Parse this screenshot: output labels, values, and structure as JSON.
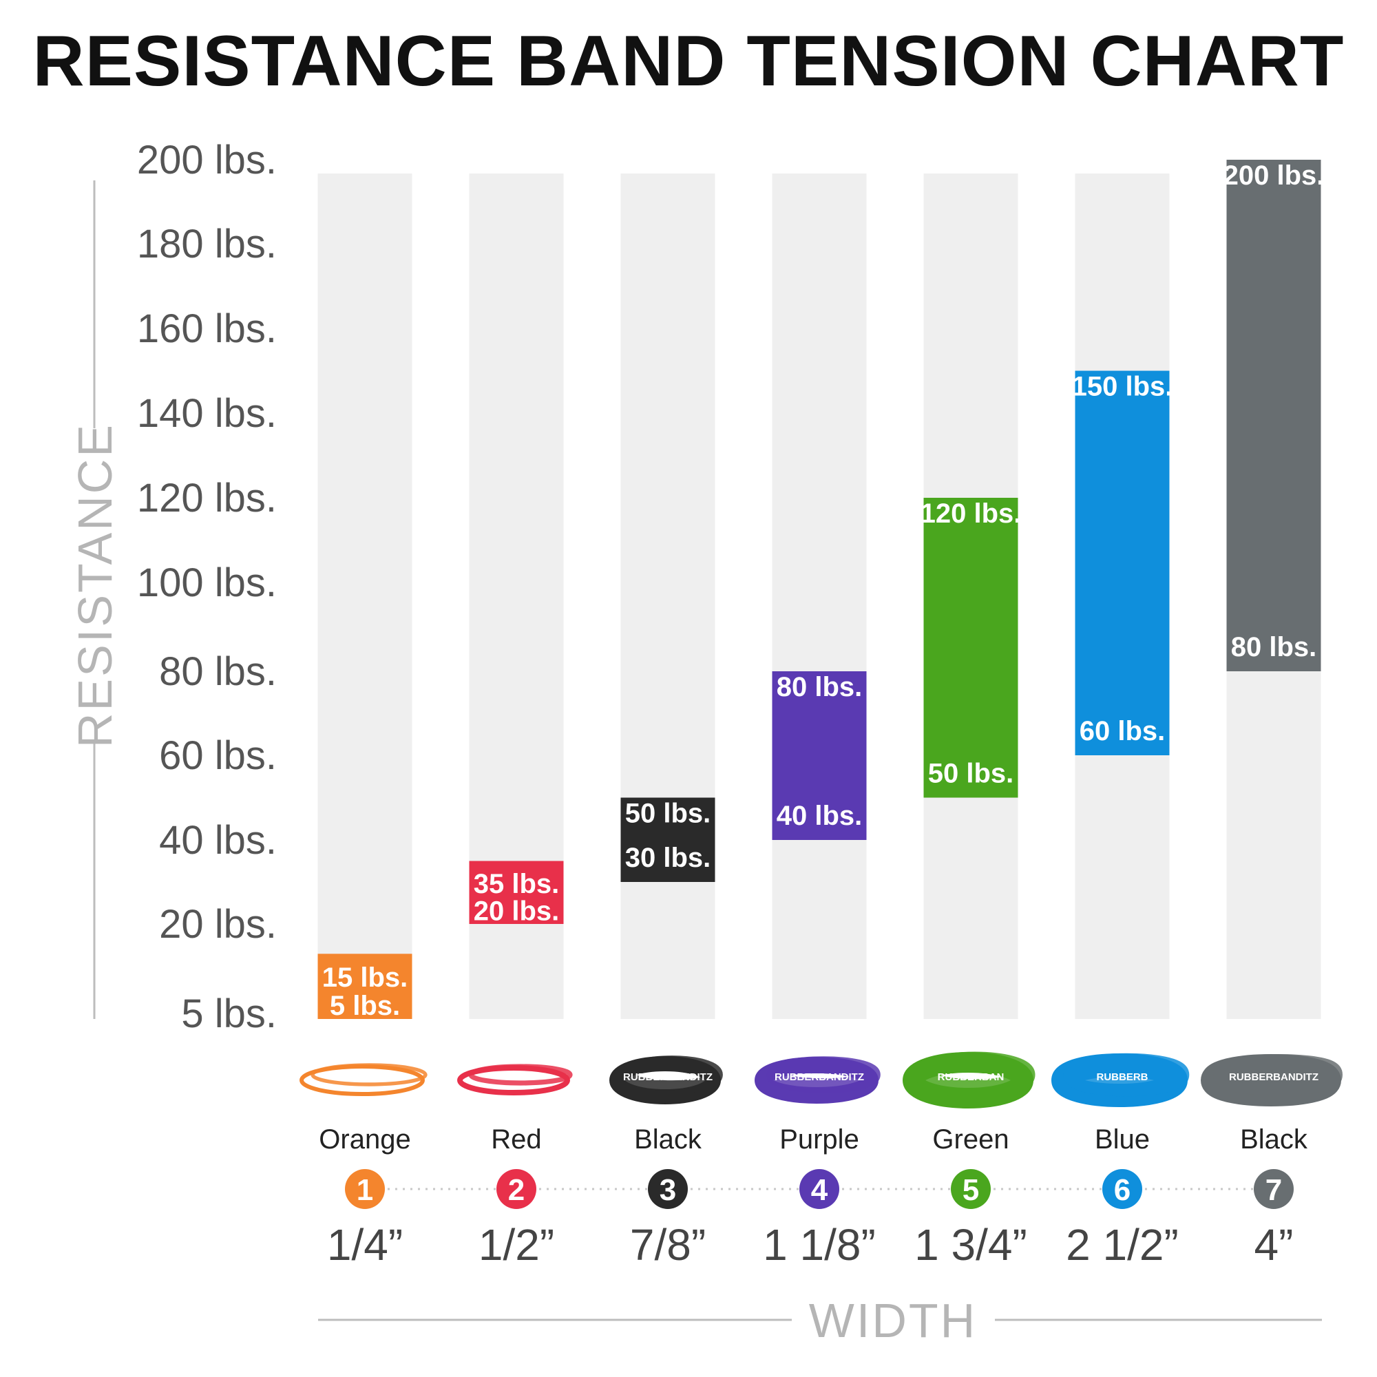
{
  "chart_data": {
    "type": "bar",
    "subtype": "floating-range",
    "title": "RESISTANCE BAND TENSION CHART",
    "ylabel": "RESISTANCE",
    "xlabel": "WIDTH",
    "yticks": [
      "5 lbs.",
      "20 lbs.",
      "40 lbs.",
      "60 lbs.",
      "80 lbs.",
      "100 lbs.",
      "120 lbs.",
      "140 lbs.",
      "160 lbs.",
      "180 lbs.",
      "200 lbs."
    ],
    "ylim": [
      0,
      200
    ],
    "series": [
      {
        "index": "1",
        "name": "Orange",
        "width": "1/4”",
        "low": 5,
        "high": 15,
        "low_label": "5 lbs.",
        "high_label": "15 lbs.",
        "color": "#f4852d",
        "icon": "orange-band-icon",
        "brand": ""
      },
      {
        "index": "2",
        "name": "Red",
        "width": "1/2”",
        "low": 20,
        "high": 35,
        "low_label": "20 lbs.",
        "high_label": "35 lbs.",
        "color": "#e8304a",
        "icon": "red-band-icon",
        "brand": ""
      },
      {
        "index": "3",
        "name": "Black",
        "width": "7/8”",
        "low": 30,
        "high": 50,
        "low_label": "30 lbs.",
        "high_label": "50 lbs.",
        "color": "#2a2a2a",
        "icon": "black-band-icon",
        "brand": "RUBBERBANDITZ"
      },
      {
        "index": "4",
        "name": "Purple",
        "width": "1 1/8”",
        "low": 40,
        "high": 80,
        "low_label": "40 lbs.",
        "high_label": "80 lbs.",
        "color": "#5a3ab2",
        "icon": "purple-band-icon",
        "brand": "RUBBERBANDITZ"
      },
      {
        "index": "5",
        "name": "Green",
        "width": "1 3/4”",
        "low": 50,
        "high": 120,
        "low_label": "50 lbs.",
        "high_label": "120 lbs.",
        "color": "#4aa61e",
        "icon": "green-band-icon",
        "brand": "RUBBERBAN"
      },
      {
        "index": "6",
        "name": "Blue",
        "width": "2 1/2”",
        "low": 60,
        "high": 150,
        "low_label": "60 lbs.",
        "high_label": "150 lbs.",
        "color": "#0f8fdc",
        "icon": "blue-band-icon",
        "brand": "RUBBERB"
      },
      {
        "index": "7",
        "name": "Black",
        "width": "4”",
        "low": 80,
        "high": 200,
        "low_label": "80 lbs.",
        "high_label": "200 lbs.",
        "color": "#686e71",
        "icon": "black-band-icon",
        "brand": "RUBBERBANDITZ"
      }
    ]
  },
  "colors": {
    "track": "#efefef",
    "axis_line": "#bdbdbd",
    "dot_line": "#c8c8c8"
  }
}
